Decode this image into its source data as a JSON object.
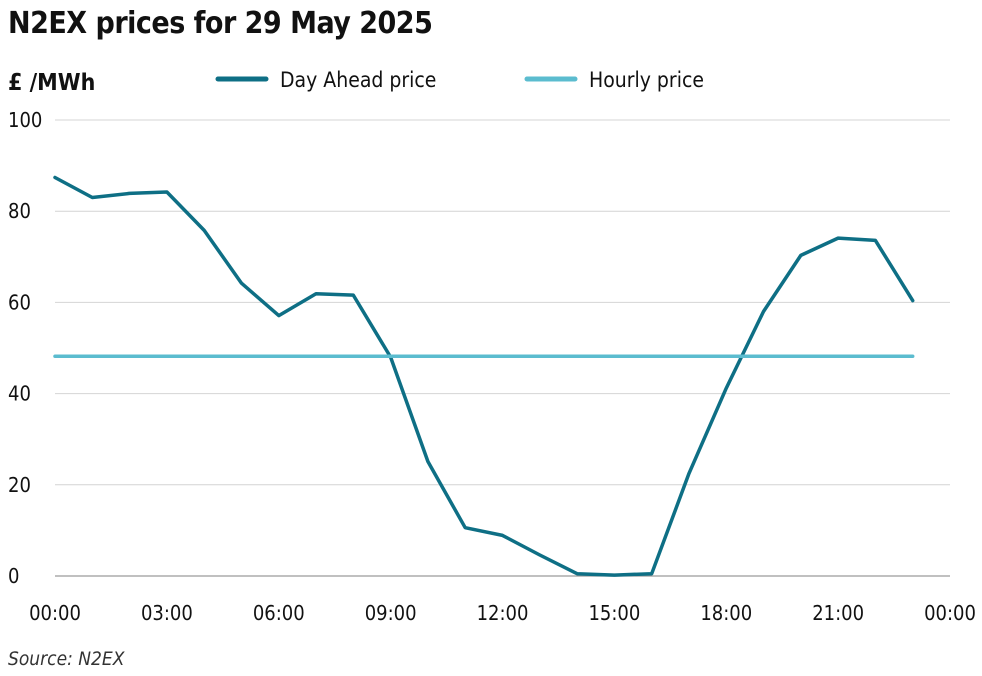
{
  "chart_data": {
    "type": "line",
    "title": "N2EX prices for 29 May 2025",
    "ylabel": "£ /MWh",
    "xlabel": "",
    "source": "Source: N2EX",
    "ylim": [
      0,
      100
    ],
    "yticks": [
      0,
      20,
      40,
      60,
      80,
      100
    ],
    "xlim": [
      0,
      24
    ],
    "xticks": [
      {
        "x": 0,
        "label": "00:00"
      },
      {
        "x": 3,
        "label": "03:00"
      },
      {
        "x": 6,
        "label": "06:00"
      },
      {
        "x": 9,
        "label": "09:00"
      },
      {
        "x": 12,
        "label": "12:00"
      },
      {
        "x": 15,
        "label": "15:00"
      },
      {
        "x": 18,
        "label": "18:00"
      },
      {
        "x": 21,
        "label": "21:00"
      },
      {
        "x": 24,
        "label": "00:00"
      }
    ],
    "grid": true,
    "legend_position": "top",
    "series": [
      {
        "name": "Day Ahead price",
        "color": "#0e6f85",
        "x": [
          0,
          1,
          2,
          3,
          4,
          5,
          6,
          7,
          8,
          9,
          10,
          11,
          12,
          13,
          14,
          15,
          16,
          17,
          18,
          19,
          20,
          21,
          22,
          23
        ],
        "values": [
          87.4,
          83.0,
          83.9,
          84.2,
          75.8,
          64.2,
          57.1,
          61.9,
          61.6,
          48.0,
          25.1,
          10.6,
          8.9,
          4.6,
          0.5,
          0.2,
          0.5,
          22.5,
          41.2,
          58.0,
          70.3,
          74.1,
          73.6,
          60.4
        ]
      },
      {
        "name": "Hourly price",
        "color": "#5bbccf",
        "x": [
          0,
          23
        ],
        "values": [
          48.2,
          48.2
        ]
      }
    ]
  }
}
